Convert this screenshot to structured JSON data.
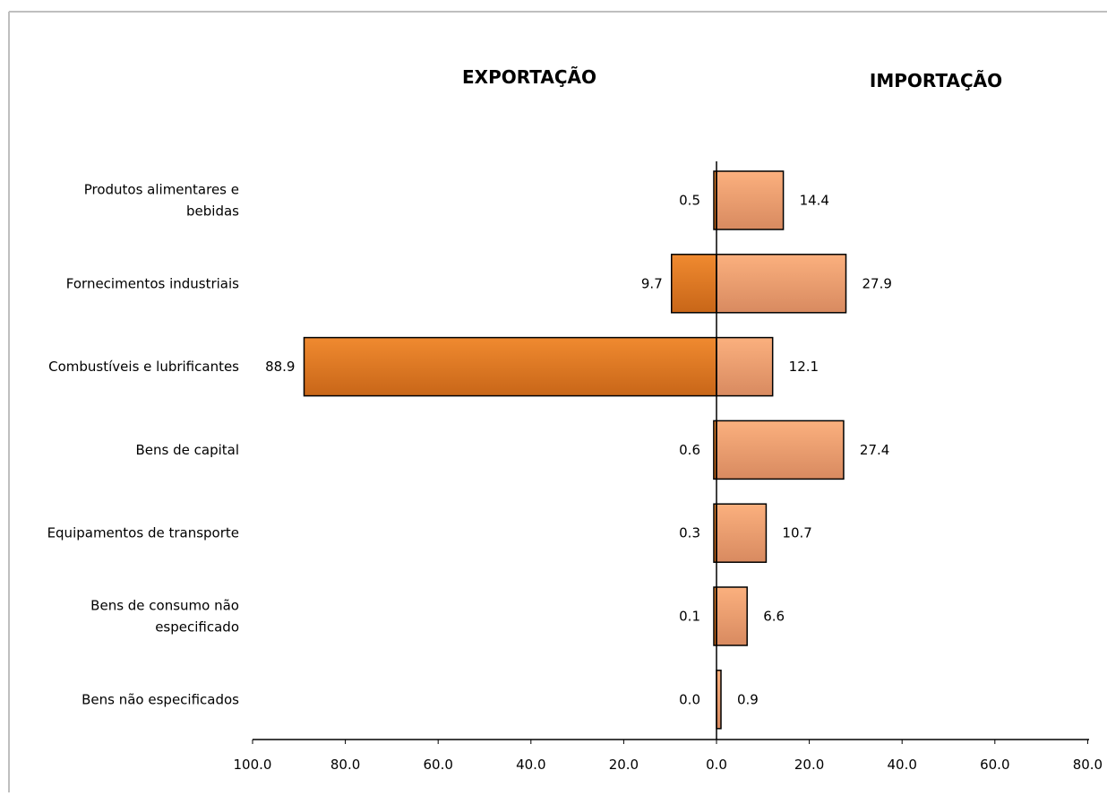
{
  "chart_data": {
    "type": "bar",
    "orientation": "horizontal-diverging",
    "headers": {
      "left": "EXPORTAÇÃO",
      "right": "IMPORTAÇÃO"
    },
    "categories": [
      [
        "Produtos alimentares e",
        "bebidas"
      ],
      [
        "Fornecimentos industriais"
      ],
      [
        "Combustíveis e lubrificantes"
      ],
      [
        "Bens de capital"
      ],
      [
        "Equipamentos de transporte"
      ],
      [
        "Bens de consumo não",
        "especificado"
      ],
      [
        "Bens não especificados"
      ]
    ],
    "series": [
      {
        "values": [
          0.5,
          9.7,
          88.9,
          0.6,
          0.3,
          0.1,
          0.0
        ],
        "side": "left"
      },
      {
        "values": [
          14.4,
          27.9,
          12.1,
          27.4,
          10.7,
          6.6,
          0.9
        ],
        "side": "right"
      }
    ],
    "value_labels": {
      "export": [
        "0.5",
        "9.7",
        "88.9",
        "0.6",
        "0.3",
        "0.1",
        "0.0"
      ],
      "import": [
        "14.4",
        "27.9",
        "12.1",
        "27.4",
        "10.7",
        "6.6",
        "0.9"
      ]
    },
    "x_ticks": [
      "100.0",
      "80.0",
      "60.0",
      "40.0",
      "20.0",
      "0.0",
      "20.0",
      "40.0",
      "60.0",
      "80.0"
    ],
    "xlim": [
      -100,
      80
    ],
    "grid": false,
    "colors": {
      "export": "#e07b2b",
      "import": "#f0a070",
      "border": "#000000"
    }
  }
}
